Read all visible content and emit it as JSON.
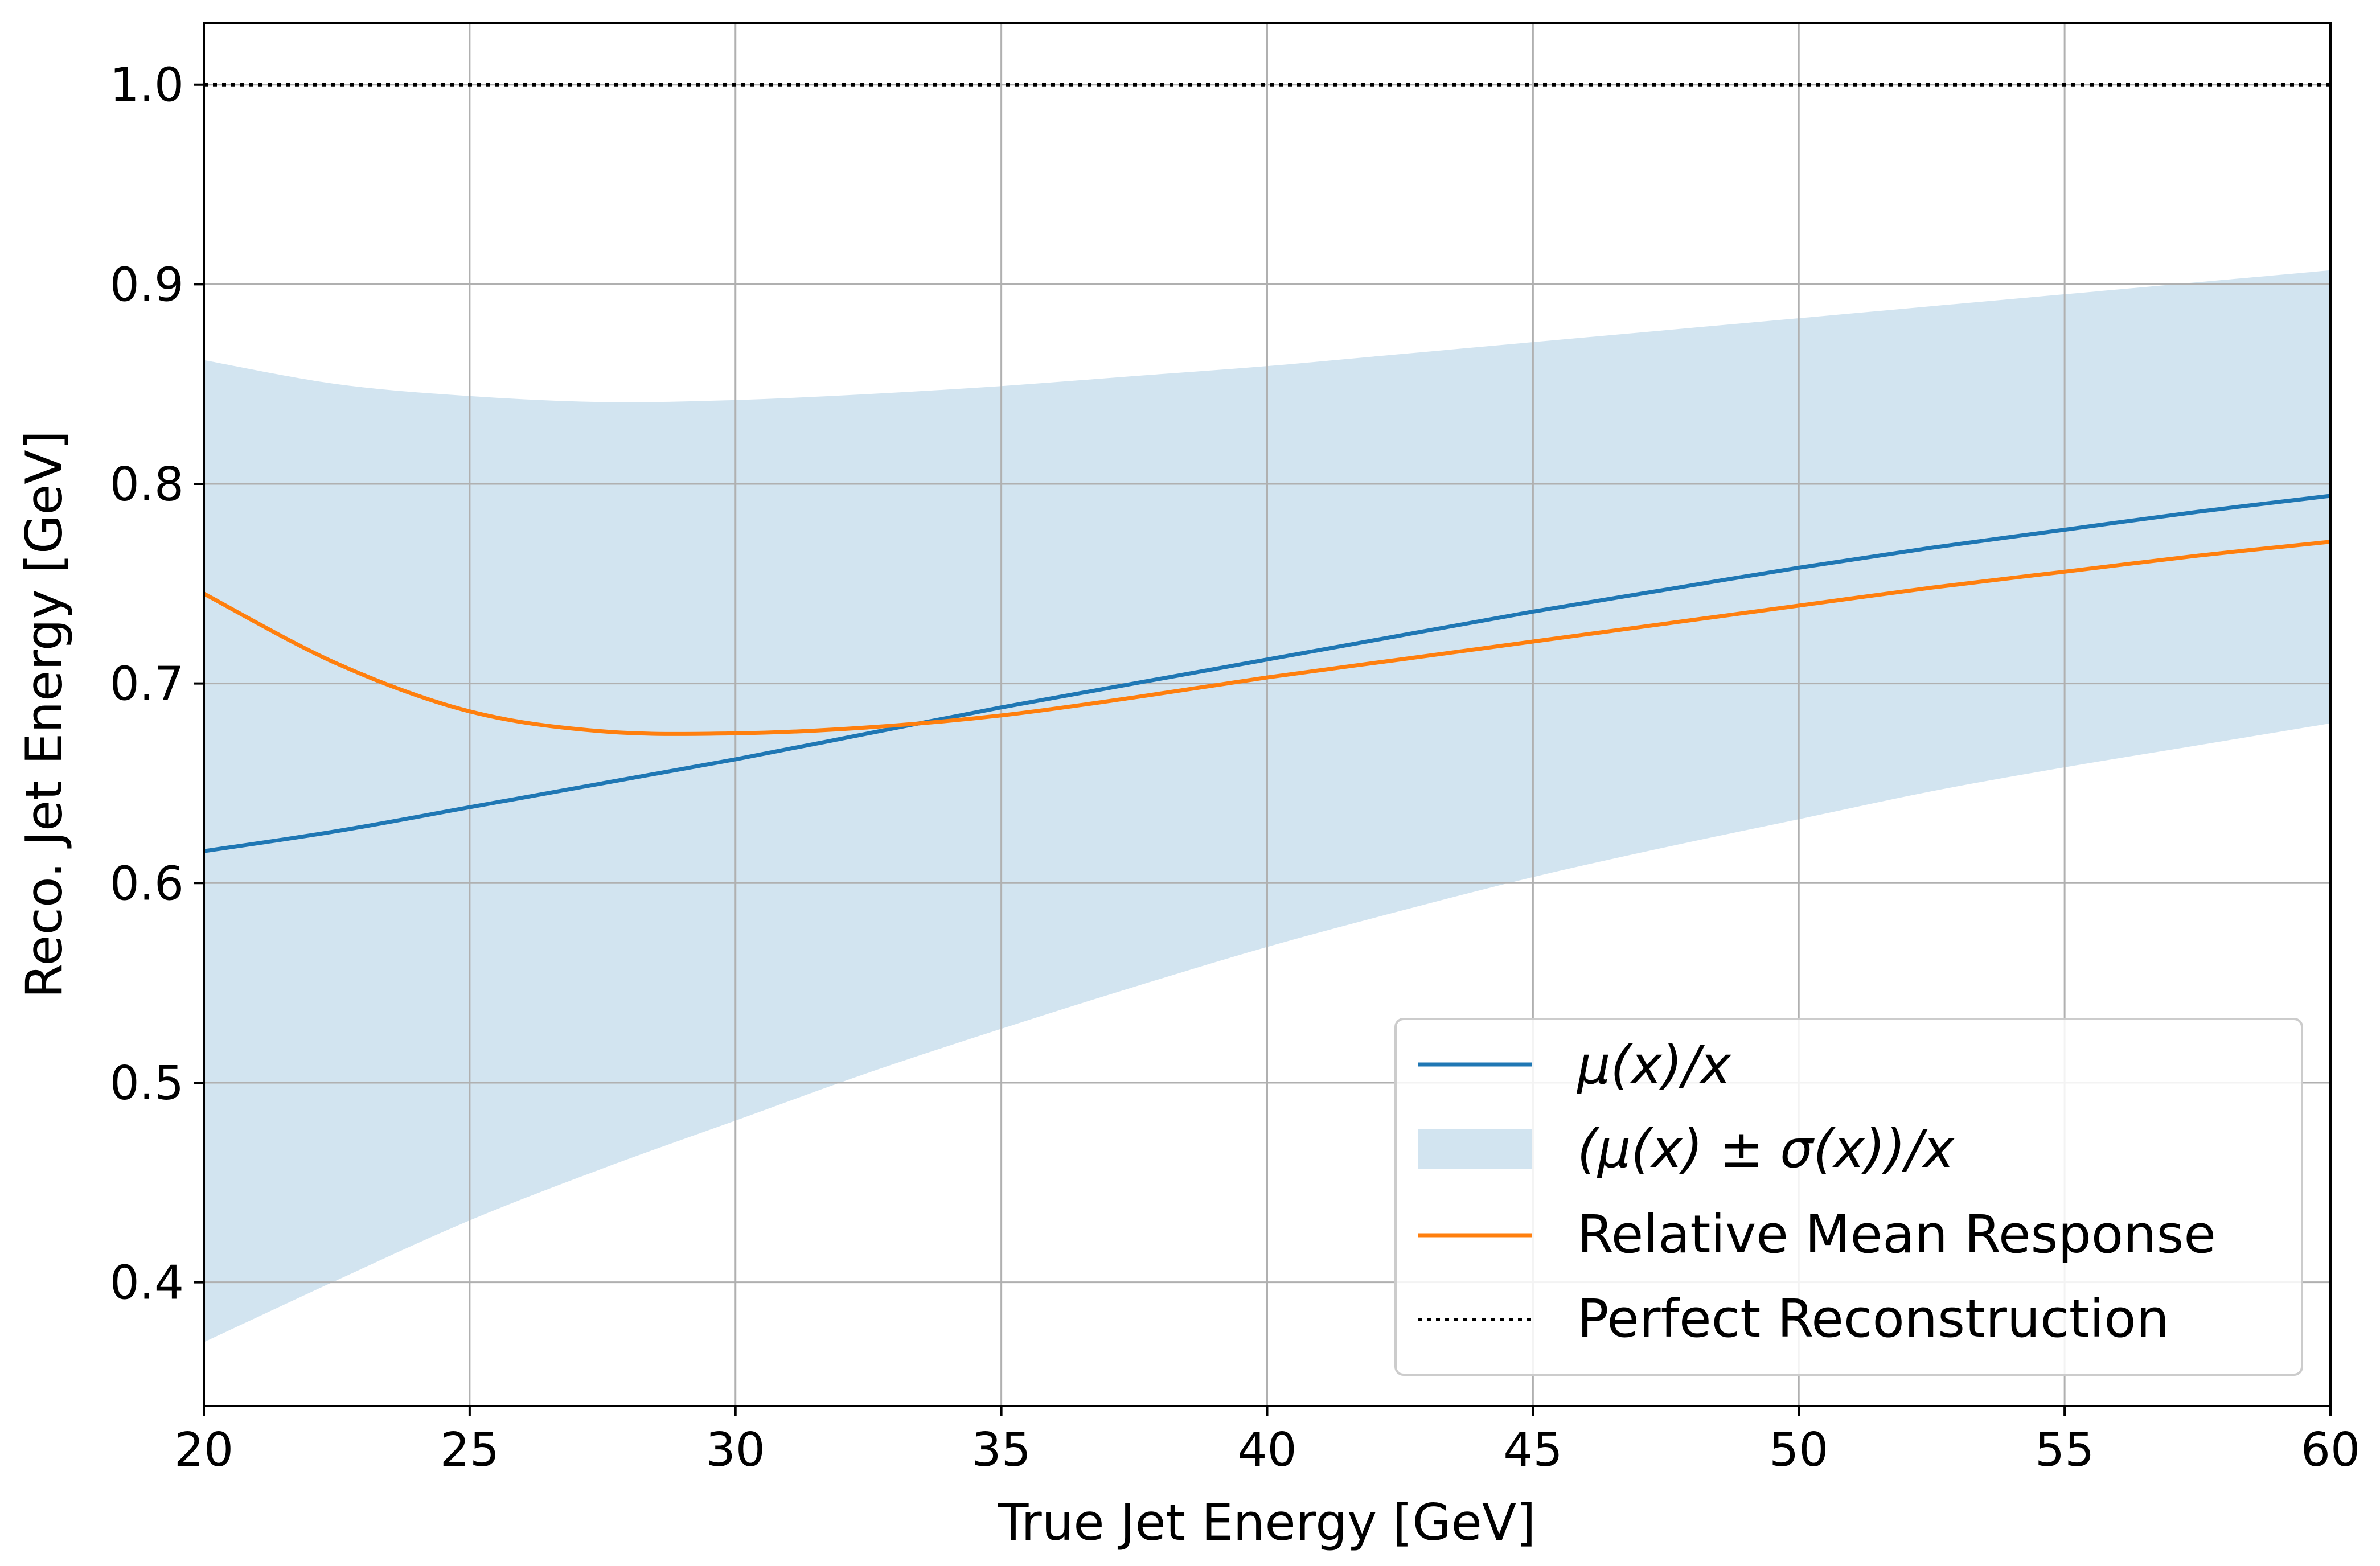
{
  "chart_data": {
    "type": "line",
    "xlabel": "True Jet Energy [GeV]",
    "ylabel": "Reco. Jet Energy [GeV]",
    "xlim": [
      20,
      60
    ],
    "ylim": [
      0.338,
      1.031
    ],
    "xticks": [
      20,
      25,
      30,
      35,
      40,
      45,
      50,
      55,
      60
    ],
    "xtick_labels": [
      "20",
      "25",
      "30",
      "35",
      "40",
      "45",
      "50",
      "55",
      "60"
    ],
    "yticks": [
      0.4,
      0.5,
      0.6,
      0.7,
      0.8,
      0.9,
      1.0
    ],
    "ytick_labels": [
      "0.4",
      "0.5",
      "0.6",
      "0.7",
      "0.8",
      "0.9",
      "1.0"
    ],
    "grid": true,
    "legend_position": "lower-right",
    "x": [
      20,
      22.5,
      25,
      27.5,
      30,
      32.5,
      35,
      37.5,
      40,
      42.5,
      45,
      47.5,
      50,
      52.5,
      55,
      57.5,
      60
    ],
    "series": [
      {
        "name": "μ(x)/x",
        "kind": "line",
        "color": "#1f77b4",
        "values": [
          0.616,
          0.626,
          0.638,
          0.65,
          0.662,
          0.675,
          0.688,
          0.7,
          0.712,
          0.724,
          0.736,
          0.747,
          0.758,
          0.768,
          0.777,
          0.786,
          0.794
        ]
      },
      {
        "name": "(μ(x) ± σ(x))/x",
        "kind": "band",
        "color": "#1f77b4",
        "opacity": 0.2,
        "upper": [
          0.862,
          0.85,
          0.844,
          0.841,
          0.842,
          0.845,
          0.849,
          0.854,
          0.859,
          0.865,
          0.871,
          0.877,
          0.883,
          0.889,
          0.895,
          0.901,
          0.907
        ],
        "lower": [
          0.37,
          0.401,
          0.431,
          0.457,
          0.481,
          0.505,
          0.527,
          0.548,
          0.568,
          0.586,
          0.603,
          0.618,
          0.632,
          0.646,
          0.658,
          0.669,
          0.68
        ]
      },
      {
        "name": "Relative Mean Response",
        "kind": "line",
        "color": "#ff7f0e",
        "values": [
          0.745,
          0.71,
          0.686,
          0.676,
          0.675,
          0.678,
          0.684,
          0.693,
          0.703,
          0.712,
          0.721,
          0.73,
          0.739,
          0.748,
          0.756,
          0.764,
          0.771
        ]
      },
      {
        "name": "Perfect Reconstruction",
        "kind": "hline",
        "color": "#000000",
        "style": "dotted",
        "y": 1.0
      }
    ]
  }
}
